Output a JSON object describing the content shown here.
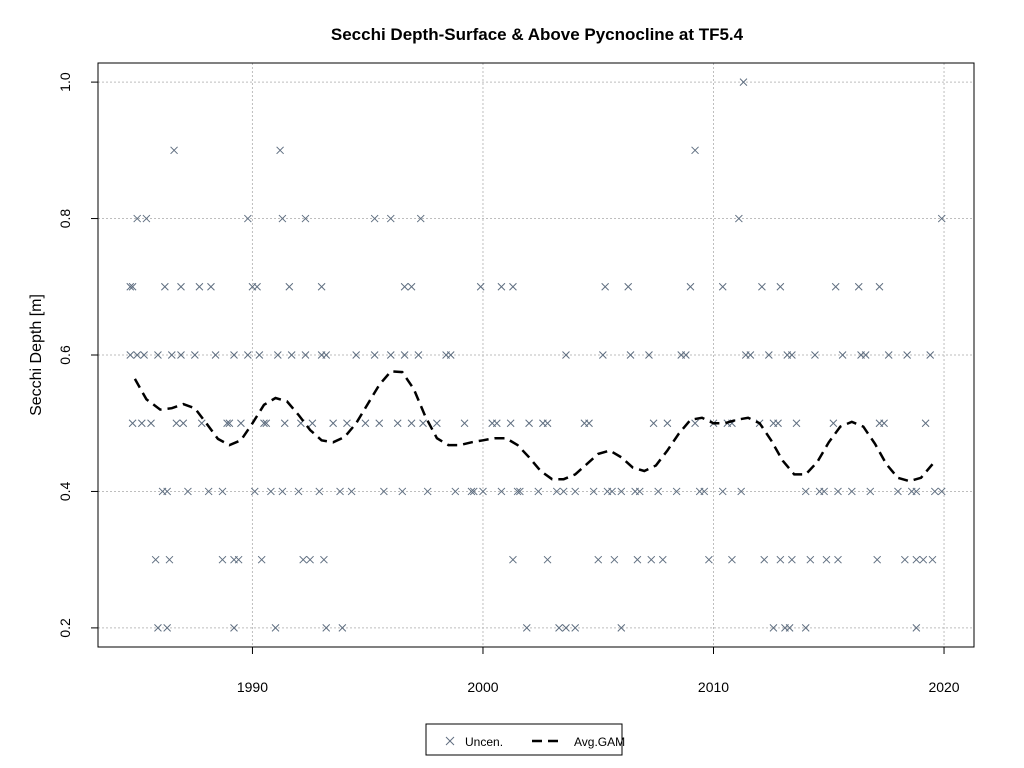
{
  "chart_data": {
    "type": "scatter",
    "title": "Secchi Depth-Surface & Above Pycnocline at TF5.4",
    "xlabel": "",
    "ylabel": "Secchi Depth [m]",
    "xlim": [
      1983.3,
      2021.3
    ],
    "ylim": [
      0.172,
      1.028
    ],
    "x_ticks": [
      1990,
      2000,
      2010,
      2020
    ],
    "y_ticks": [
      0.2,
      0.4,
      0.6,
      0.8,
      1.0
    ],
    "y_tick_labels": [
      "0.2",
      "0.4",
      "0.6",
      "0.8",
      "1.0"
    ],
    "grid": true,
    "legend_position": "bottom",
    "colors": {
      "points": "#5f6e80",
      "gam": "#000000",
      "grid": "#bebebe"
    },
    "series": [
      {
        "name": "Uncen.",
        "marker": "x",
        "x": [
          1984.7,
          1984.8,
          1985.0,
          1985.3,
          1985.6,
          1985.9,
          1986.3,
          1986.5,
          1986.7,
          1986.9,
          1987.2,
          1987.5,
          1987.8,
          1988.1,
          1988.4,
          1988.7,
          1989.0,
          1989.2,
          1989.5,
          1989.8,
          1990.1,
          1990.3,
          1990.6,
          1990.8,
          1991.1,
          1991.4,
          1991.7,
          1992.0,
          1992.3,
          1992.6,
          1992.9,
          1993.2,
          1993.5,
          1993.8,
          1994.1,
          1994.5,
          1994.9,
          1995.3,
          1995.7,
          1996.0,
          1996.3,
          1996.6,
          1996.9,
          1997.2,
          1997.6,
          1998.0,
          1998.4,
          1998.8,
          1999.2,
          1999.6,
          2000.0,
          2000.4,
          2000.8,
          2001.2,
          2001.6,
          2002.0,
          2002.4,
          2002.8,
          2003.2,
          2003.6,
          2004.0,
          2004.4,
          2004.8,
          2005.2,
          2005.6,
          2006.0,
          2006.4,
          2006.8,
          2007.2,
          2007.6,
          2008.0,
          2008.4,
          2008.8,
          2009.2,
          2009.6,
          2010.0,
          2010.4,
          2010.8,
          2011.2,
          2011.6,
          2012.0,
          2012.4,
          2012.8,
          2013.2,
          2013.6,
          2014.0,
          2014.4,
          2014.8,
          2015.2,
          2015.6,
          2016.0,
          2016.4,
          2016.8,
          2017.2,
          2017.6,
          2018.0,
          2018.4,
          2018.8,
          2019.2,
          2019.6,
          2019.9,
          1985.2,
          1986.1,
          1987.0,
          1988.9,
          1989.4,
          1990.5,
          1991.3,
          1992.1,
          1993.0,
          1994.3,
          1995.5,
          1996.5,
          1997.4,
          1998.6,
          1999.5,
          2000.6,
          2001.5,
          2002.6,
          2003.5,
          2004.6,
          2005.4,
          2006.6,
          2007.4,
          2008.6,
          2009.4,
          2010.6,
          2011.4,
          2012.6,
          2013.4,
          2014.6,
          2015.4,
          2016.6,
          2017.4,
          2018.6,
          2019.4,
          1984.8,
          1986.6,
          1991.2,
          2009.2,
          2011.3,
          1985.0,
          1985.4,
          1989.8,
          1991.3,
          1992.3,
          1995.3,
          1996.0,
          1997.3,
          2011.1,
          2019.9,
          1984.7,
          1986.2,
          1986.9,
          1987.7,
          1988.2,
          1990.0,
          1990.2,
          1991.6,
          1993.0,
          1996.6,
          1996.9,
          1999.9,
          2000.8,
          2001.3,
          2005.3,
          2006.3,
          2009.0,
          2010.4,
          2012.1,
          2012.9,
          2015.3,
          2016.3,
          2017.2,
          1985.8,
          1986.4,
          1988.7,
          1989.2,
          1990.4,
          1992.2,
          1992.5,
          1993.1,
          2001.3,
          2002.8,
          2005.0,
          2005.7,
          2006.7,
          2007.3,
          2007.8,
          2009.8,
          2010.8,
          2012.2,
          2012.9,
          2013.4,
          2014.2,
          2014.9,
          2015.4,
          2017.1,
          2018.3,
          2018.8,
          2019.1,
          2019.5,
          1985.9,
          1986.3,
          1989.2,
          1991.0,
          1993.2,
          1993.9,
          2001.9,
          2003.3,
          2003.6,
          2004.0,
          2006.0,
          2012.6,
          2013.1,
          2013.3,
          2014.0,
          2018.8
        ],
        "y": [
          0.6,
          0.5,
          0.6,
          0.6,
          0.5,
          0.6,
          0.4,
          0.6,
          0.5,
          0.6,
          0.4,
          0.6,
          0.5,
          0.4,
          0.6,
          0.4,
          0.5,
          0.6,
          0.5,
          0.6,
          0.4,
          0.6,
          0.5,
          0.4,
          0.6,
          0.5,
          0.6,
          0.4,
          0.6,
          0.5,
          0.4,
          0.6,
          0.5,
          0.4,
          0.5,
          0.6,
          0.5,
          0.6,
          0.4,
          0.6,
          0.5,
          0.6,
          0.5,
          0.6,
          0.4,
          0.5,
          0.6,
          0.4,
          0.5,
          0.4,
          0.4,
          0.5,
          0.4,
          0.5,
          0.4,
          0.5,
          0.4,
          0.5,
          0.4,
          0.6,
          0.4,
          0.5,
          0.4,
          0.6,
          0.4,
          0.4,
          0.6,
          0.4,
          0.6,
          0.4,
          0.5,
          0.4,
          0.6,
          0.5,
          0.4,
          0.5,
          0.4,
          0.5,
          0.4,
          0.6,
          0.5,
          0.6,
          0.5,
          0.6,
          0.5,
          0.4,
          0.6,
          0.4,
          0.5,
          0.6,
          0.4,
          0.6,
          0.4,
          0.5,
          0.6,
          0.4,
          0.6,
          0.4,
          0.5,
          0.4,
          0.4,
          0.5,
          0.4,
          0.5,
          0.5,
          0.3,
          0.5,
          0.4,
          0.5,
          0.6,
          0.4,
          0.5,
          0.4,
          0.5,
          0.6,
          0.4,
          0.5,
          0.4,
          0.5,
          0.4,
          0.5,
          0.4,
          0.4,
          0.5,
          0.6,
          0.4,
          0.5,
          0.6,
          0.5,
          0.6,
          0.4,
          0.4,
          0.6,
          0.5,
          0.4,
          0.6,
          0.7,
          0.9,
          0.9,
          0.9,
          1.0,
          0.8,
          0.8,
          0.8,
          0.8,
          0.8,
          0.8,
          0.8,
          0.8,
          0.8,
          0.8,
          0.7,
          0.7,
          0.7,
          0.7,
          0.7,
          0.7,
          0.7,
          0.7,
          0.7,
          0.7,
          0.7,
          0.7,
          0.7,
          0.7,
          0.7,
          0.7,
          0.7,
          0.7,
          0.7,
          0.7,
          0.7,
          0.7,
          0.7,
          0.3,
          0.3,
          0.3,
          0.3,
          0.3,
          0.3,
          0.3,
          0.3,
          0.3,
          0.3,
          0.3,
          0.3,
          0.3,
          0.3,
          0.3,
          0.3,
          0.3,
          0.3,
          0.3,
          0.3,
          0.3,
          0.3,
          0.3,
          0.3,
          0.3,
          0.3,
          0.3,
          0.3,
          0.2,
          0.2,
          0.2,
          0.2,
          0.2,
          0.2,
          0.2,
          0.2,
          0.2,
          0.2,
          0.2,
          0.2,
          0.2,
          0.2,
          0.2,
          0.2
        ]
      },
      {
        "name": "Avg.GAM",
        "line": "dashed",
        "x": [
          1984.9,
          1985.4,
          1986.0,
          1986.5,
          1987.0,
          1987.5,
          1988.0,
          1988.5,
          1989.0,
          1989.5,
          1990.0,
          1990.5,
          1991.0,
          1991.5,
          1992.0,
          1992.5,
          1993.0,
          1993.5,
          1994.0,
          1994.5,
          1995.0,
          1995.5,
          1996.0,
          1996.5,
          1997.0,
          1997.5,
          1998.0,
          1998.5,
          1999.0,
          1999.5,
          2000.0,
          2000.5,
          2001.0,
          2001.5,
          2002.0,
          2002.5,
          2003.0,
          2003.5,
          2004.0,
          2004.5,
          2005.0,
          2005.5,
          2006.0,
          2006.5,
          2007.0,
          2007.5,
          2008.0,
          2008.5,
          2009.0,
          2009.5,
          2010.0,
          2010.5,
          2011.0,
          2011.5,
          2012.0,
          2012.5,
          2013.0,
          2013.5,
          2014.0,
          2014.5,
          2015.0,
          2015.5,
          2016.0,
          2016.5,
          2017.0,
          2017.5,
          2018.0,
          2018.5,
          2019.0,
          2019.5
        ],
        "y": [
          0.565,
          0.535,
          0.52,
          0.522,
          0.528,
          0.522,
          0.5,
          0.477,
          0.468,
          0.475,
          0.5,
          0.527,
          0.537,
          0.532,
          0.512,
          0.49,
          0.475,
          0.472,
          0.48,
          0.5,
          0.528,
          0.556,
          0.576,
          0.575,
          0.55,
          0.51,
          0.478,
          0.468,
          0.468,
          0.472,
          0.475,
          0.478,
          0.478,
          0.468,
          0.45,
          0.43,
          0.418,
          0.418,
          0.425,
          0.44,
          0.455,
          0.46,
          0.45,
          0.435,
          0.43,
          0.438,
          0.46,
          0.485,
          0.505,
          0.508,
          0.5,
          0.5,
          0.505,
          0.508,
          0.5,
          0.475,
          0.445,
          0.425,
          0.425,
          0.443,
          0.472,
          0.495,
          0.502,
          0.495,
          0.47,
          0.44,
          0.42,
          0.415,
          0.42,
          0.44
        ]
      }
    ]
  }
}
